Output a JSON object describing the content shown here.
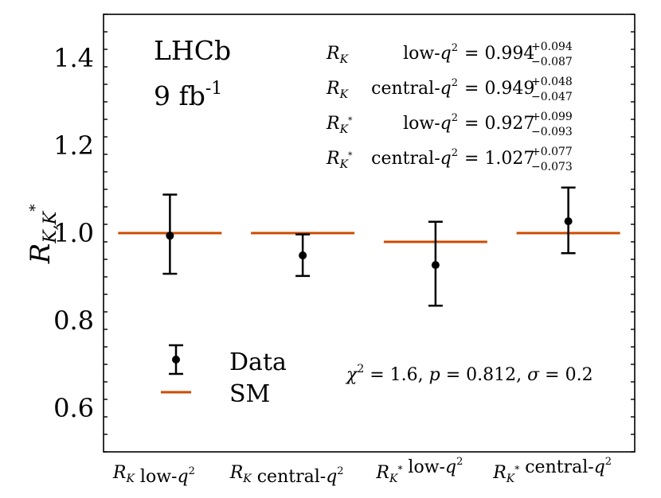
{
  "chart_data": {
    "type": "scatter",
    "experiment": "LHCb",
    "luminosity": "9 fb",
    "luminosity_exp": "-1",
    "ylabel": "R",
    "ylabel_sub": "K,K",
    "ylabel_sup": "*",
    "ylim": [
      0.5,
      1.5
    ],
    "yticks": [
      0.6,
      0.8,
      1.0,
      1.2,
      1.4
    ],
    "ytick_labels": [
      "0.6",
      "0.8",
      "1.0",
      "1.2",
      "1.4"
    ],
    "categories": [
      {
        "base": "R",
        "sub": "K",
        "sup": "",
        "label": " low-",
        "q": "q",
        "qsup": "2"
      },
      {
        "base": "R",
        "sub": "K",
        "sup": "",
        "label": " central-",
        "q": "q",
        "qsup": "2"
      },
      {
        "base": "R",
        "sub": "K",
        "sup": "*",
        "label": " low-",
        "q": "q",
        "qsup": "2"
      },
      {
        "base": "R",
        "sub": "K",
        "sup": "*",
        "label": " central-",
        "q": "q",
        "qsup": "2"
      }
    ],
    "series": [
      {
        "name": "Data",
        "values": [
          0.994,
          0.949,
          0.927,
          1.027
        ],
        "err_plus": [
          0.094,
          0.048,
          0.099,
          0.077
        ],
        "err_minus": [
          0.087,
          0.047,
          0.093,
          0.073
        ],
        "color": "#000000"
      },
      {
        "name": "SM",
        "values": [
          1.0,
          1.0,
          0.98,
          1.0
        ],
        "color": "#cc4c02"
      }
    ],
    "results_table": [
      {
        "obs": "R",
        "sub": "K",
        "sup": "",
        "range": "low-",
        "q": "q",
        "qsup": "2",
        "eq": "= ",
        "value": "0.994",
        "plus": "+0.094",
        "minus": "−0.087"
      },
      {
        "obs": "R",
        "sub": "K",
        "sup": "",
        "range": "central-",
        "q": "q",
        "qsup": "2",
        "eq": "= ",
        "value": "0.949",
        "plus": "+0.048",
        "minus": "−0.047"
      },
      {
        "obs": "R",
        "sub": "K",
        "sup": "*",
        "range": "low-",
        "q": "q",
        "qsup": "2",
        "eq": "= ",
        "value": "0.927",
        "plus": "+0.099",
        "minus": "−0.093"
      },
      {
        "obs": "R",
        "sub": "K",
        "sup": "*",
        "range": "central-",
        "q": "q",
        "qsup": "2",
        "eq": "= ",
        "value": "1.027",
        "plus": "+0.077",
        "minus": "−0.073"
      }
    ],
    "fit_summary": {
      "chi": "χ",
      "chi_exp": "2",
      "text": " = 1.6, ",
      "p": "p",
      "p_text": " = 0.812, ",
      "sigma": "σ",
      "sigma_text": " = 0.2"
    },
    "legend": {
      "position": "lower-left",
      "data_label": "Data",
      "sm_label": "SM"
    },
    "grid": false
  }
}
